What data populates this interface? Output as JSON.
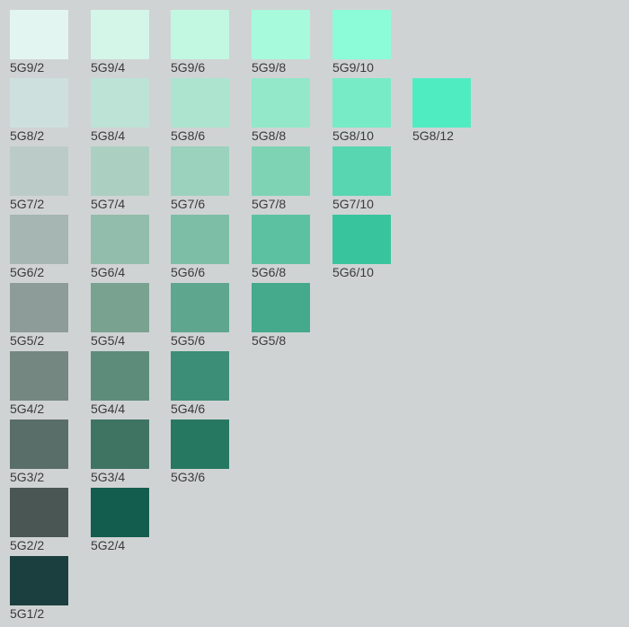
{
  "background": "#d0d3d4",
  "hue": "5G",
  "rows": [
    {
      "value": 9,
      "chips": [
        {
          "label": "5G9/2",
          "color": "#e2f5f1"
        },
        {
          "label": "5G9/4",
          "color": "#d3f6e9"
        },
        {
          "label": "5G9/6",
          "color": "#c2f8e2"
        },
        {
          "label": "5G9/8",
          "color": "#a8fadc"
        },
        {
          "label": "5G9/10",
          "color": "#8bfcd7"
        }
      ]
    },
    {
      "value": 8,
      "chips": [
        {
          "label": "5G8/2",
          "color": "#cde0dd"
        },
        {
          "label": "5G8/4",
          "color": "#bde2d6"
        },
        {
          "label": "5G8/6",
          "color": "#ade4d0"
        },
        {
          "label": "5G8/8",
          "color": "#92e8c9"
        },
        {
          "label": "5G8/10",
          "color": "#76ebc6"
        },
        {
          "label": "5G8/12",
          "color": "#50ecc1"
        }
      ]
    },
    {
      "value": 7,
      "chips": [
        {
          "label": "5G7/2",
          "color": "#bbcbc8"
        },
        {
          "label": "5G7/4",
          "color": "#abd0c1"
        },
        {
          "label": "5G7/6",
          "color": "#9bd2bd"
        },
        {
          "label": "5G7/8",
          "color": "#7fd3b5"
        },
        {
          "label": "5G7/10",
          "color": "#58d6b1"
        }
      ]
    },
    {
      "value": 6,
      "chips": [
        {
          "label": "5G6/2",
          "color": "#a6b6b2"
        },
        {
          "label": "5G6/4",
          "color": "#92bcab"
        },
        {
          "label": "5G6/6",
          "color": "#7dbea6"
        },
        {
          "label": "5G6/8",
          "color": "#5cc1a1"
        },
        {
          "label": "5G6/10",
          "color": "#38c59e"
        }
      ]
    },
    {
      "value": 5,
      "chips": [
        {
          "label": "5G5/2",
          "color": "#8d9c98"
        },
        {
          "label": "5G5/4",
          "color": "#7aa291"
        },
        {
          "label": "5G5/6",
          "color": "#5fa68e"
        },
        {
          "label": "5G5/8",
          "color": "#45a98c"
        }
      ]
    },
    {
      "value": 4,
      "chips": [
        {
          "label": "5G4/2",
          "color": "#748781"
        },
        {
          "label": "5G4/4",
          "color": "#5e8c7b"
        },
        {
          "label": "5G4/6",
          "color": "#3c8e77"
        }
      ]
    },
    {
      "value": 3,
      "chips": [
        {
          "label": "5G3/2",
          "color": "#5a6e69"
        },
        {
          "label": "5G3/4",
          "color": "#3f7462"
        },
        {
          "label": "5G3/6",
          "color": "#277861"
        }
      ]
    },
    {
      "value": 2,
      "chips": [
        {
          "label": "5G2/2",
          "color": "#4a5654"
        },
        {
          "label": "5G2/4",
          "color": "#135d4f"
        }
      ]
    },
    {
      "value": 1,
      "chips": [
        {
          "label": "5G1/2",
          "color": "#1b3f3e"
        }
      ]
    }
  ]
}
